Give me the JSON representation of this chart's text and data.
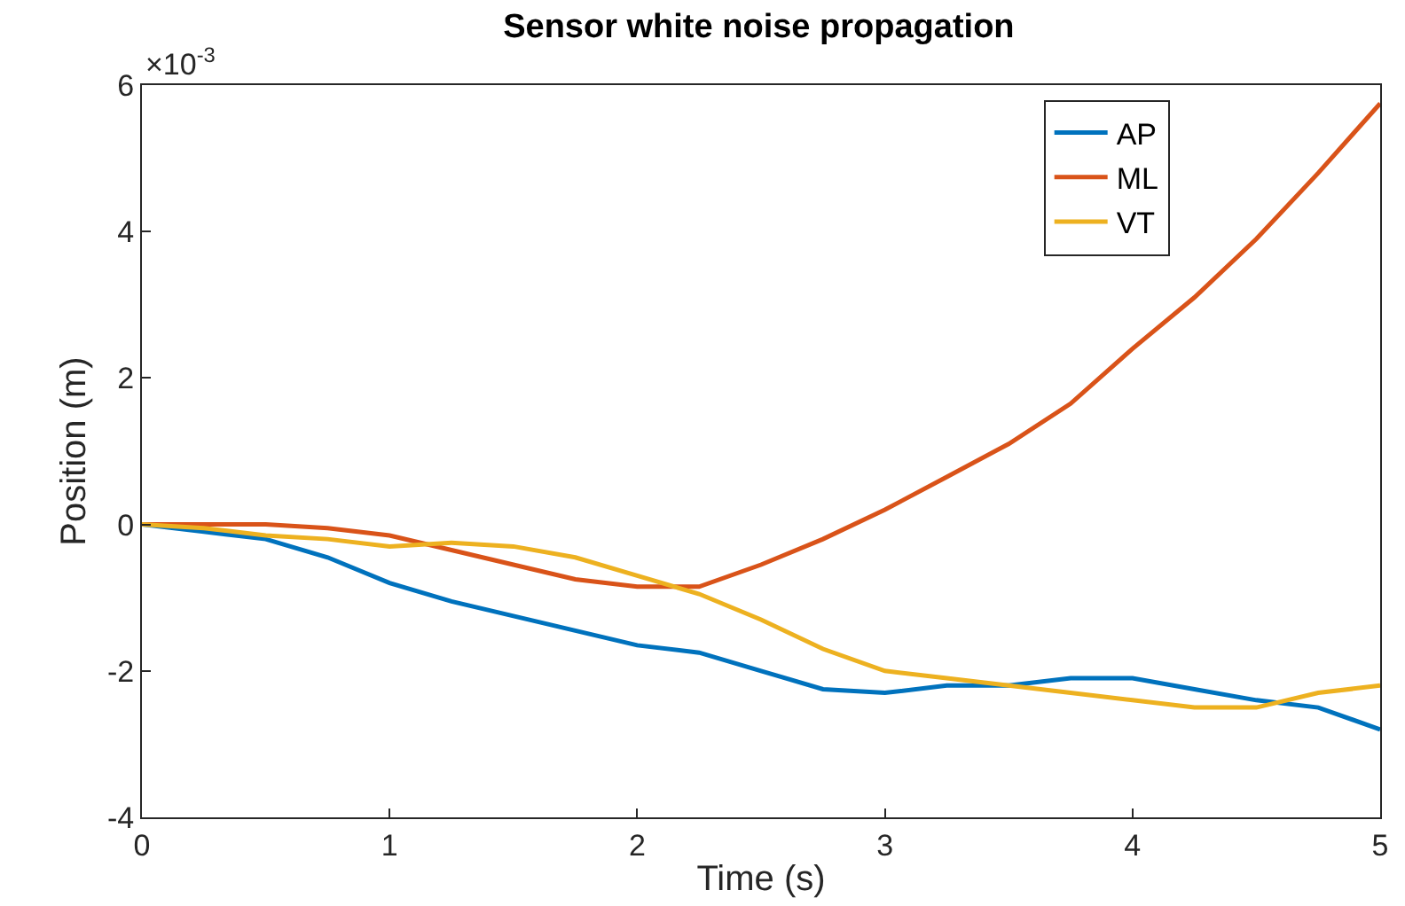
{
  "chart_data": {
    "type": "line",
    "title": "Sensor white noise propagation",
    "xlabel": "Time (s)",
    "ylabel": "Position (m)",
    "annotations": [
      "×10$^{-3}$"
    ],
    "x": [
      0,
      0.25,
      0.5,
      0.75,
      1.0,
      1.25,
      1.5,
      1.75,
      2.0,
      2.25,
      2.5,
      2.75,
      3.0,
      3.25,
      3.5,
      3.75,
      4.0,
      4.25,
      4.5,
      4.75,
      5.0
    ],
    "series": [
      {
        "name": "AP",
        "color": "#0072bd",
        "values": [
          0,
          -0.1,
          -0.2,
          -0.45,
          -0.8,
          -1.05,
          -1.25,
          -1.45,
          -1.65,
          -1.75,
          -2.0,
          -2.25,
          -2.3,
          -2.2,
          -2.2,
          -2.1,
          -2.1,
          -2.25,
          -2.4,
          -2.5,
          -2.8
        ]
      },
      {
        "name": "ML",
        "color": "#d95319",
        "values": [
          0,
          0,
          0,
          -0.05,
          -0.15,
          -0.35,
          -0.55,
          -0.75,
          -0.85,
          -0.85,
          -0.55,
          -0.2,
          0.2,
          0.65,
          1.1,
          1.65,
          2.4,
          3.1,
          3.9,
          4.8,
          5.75
        ]
      },
      {
        "name": "VT",
        "color": "#edb120",
        "values": [
          0,
          -0.05,
          -0.15,
          -0.2,
          -0.3,
          -0.25,
          -0.3,
          -0.45,
          -0.7,
          -0.95,
          -1.3,
          -1.7,
          -2.0,
          -2.1,
          -2.2,
          -2.3,
          -2.4,
          -2.5,
          -2.5,
          -2.3,
          -2.2
        ]
      }
    ],
    "xlim": [
      0,
      5
    ],
    "xticks": [
      0,
      1,
      2,
      3,
      4,
      5
    ],
    "ylim": [
      -4,
      6
    ],
    "yticks": [
      -4,
      -2,
      0,
      2,
      4,
      6
    ],
    "legend": "top right",
    "marker": "none",
    "line_style": "solid"
  }
}
